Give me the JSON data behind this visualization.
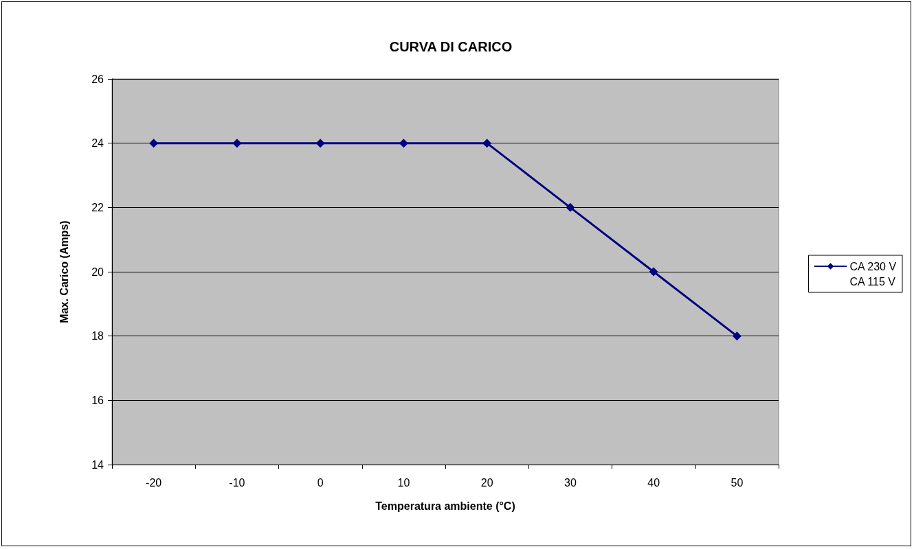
{
  "chart_data": {
    "type": "line",
    "title": "CURVA DI CARICO",
    "xlabel": "Temperatura ambiente (°C)",
    "ylabel": "Max. Carico (Amps)",
    "categories": [
      "-20",
      "-10",
      "0",
      "10",
      "20",
      "30",
      "40",
      "50"
    ],
    "series": [
      {
        "name": "CA 230 V",
        "color": "#000080",
        "values": [
          24,
          24,
          24,
          24,
          24,
          22,
          20,
          18
        ],
        "marker": "diamond"
      },
      {
        "name": "CA 115 V",
        "values": [
          null,
          null,
          null,
          null,
          null,
          null,
          null,
          null
        ],
        "marker": "none"
      }
    ],
    "ylim": [
      14,
      26
    ],
    "yticks": [
      14,
      16,
      18,
      20,
      22,
      24,
      26
    ],
    "grid": "y",
    "legend": "right",
    "line_style": "solid"
  }
}
